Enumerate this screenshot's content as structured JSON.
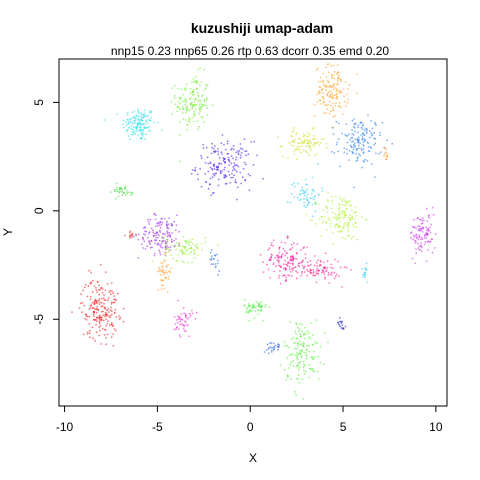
{
  "chart_data": {
    "type": "scatter",
    "title": "kuzushiji umap-adam",
    "subtitle": "nnp15 0.23 nnp65 0.26 rtp 0.63 dcorr 0.35 emd 0.20",
    "xlabel": "X",
    "ylabel": "Y",
    "xlim": [
      -10.3,
      10.6
    ],
    "ylim": [
      -9.0,
      7.0
    ],
    "x_ticks": [
      -10,
      -5,
      0,
      5,
      10
    ],
    "x_tick_labels": [
      "-10",
      "-5",
      "0",
      "5",
      "10"
    ],
    "y_ticks": [
      -5,
      0,
      5
    ],
    "y_tick_labels": [
      "-5",
      "0",
      "5"
    ],
    "grid": false,
    "legend": "none",
    "clusters": [
      {
        "color": "#22dfee",
        "x": -6.0,
        "y": 4.0,
        "sx": 0.45,
        "sy": 0.4,
        "n": 140
      },
      {
        "color": "#66ee22",
        "x": -3.1,
        "y": 5.0,
        "sx": 0.45,
        "sy": 0.65,
        "n": 150
      },
      {
        "color": "#4411ee",
        "x": -1.4,
        "y": 2.1,
        "sx": 0.75,
        "sy": 0.55,
        "n": 170
      },
      {
        "color": "#ff9911",
        "x": 4.4,
        "y": 5.5,
        "sx": 0.45,
        "sy": 0.6,
        "n": 140
      },
      {
        "color": "#2277ee",
        "x": 5.9,
        "y": 3.2,
        "sx": 0.6,
        "sy": 0.55,
        "n": 150
      },
      {
        "color": "#c8dd11",
        "x": 2.9,
        "y": 3.1,
        "sx": 0.55,
        "sy": 0.3,
        "n": 90
      },
      {
        "color": "#22ccee",
        "x": 3.0,
        "y": 0.8,
        "sx": 0.4,
        "sy": 0.4,
        "n": 60
      },
      {
        "color": "#aaee22",
        "x": 4.9,
        "y": -0.3,
        "sx": 0.6,
        "sy": 0.55,
        "n": 140
      },
      {
        "color": "#9922ee",
        "x": -4.8,
        "y": -1.1,
        "sx": 0.6,
        "sy": 0.45,
        "n": 150
      },
      {
        "color": "#88ee22",
        "x": -3.5,
        "y": -1.7,
        "sx": 0.55,
        "sy": 0.3,
        "n": 80
      },
      {
        "color": "#ff9922",
        "x": -4.6,
        "y": -2.8,
        "sx": 0.2,
        "sy": 0.35,
        "n": 45
      },
      {
        "color": "#ff1199",
        "x": 1.9,
        "y": -2.3,
        "sx": 0.6,
        "sy": 0.45,
        "n": 140
      },
      {
        "color": "#ff1188",
        "x": 3.7,
        "y": -2.7,
        "sx": 0.6,
        "sy": 0.28,
        "n": 90
      },
      {
        "color": "#cc22ee",
        "x": 9.3,
        "y": -1.1,
        "sx": 0.35,
        "sy": 0.5,
        "n": 100
      },
      {
        "color": "#ee1111",
        "x": -8.1,
        "y": -4.5,
        "sx": 0.5,
        "sy": 0.7,
        "n": 200
      },
      {
        "color": "#44ee33",
        "x": 0.3,
        "y": -4.5,
        "sx": 0.3,
        "sy": 0.22,
        "n": 55
      },
      {
        "color": "#ee22cc",
        "x": -3.6,
        "y": -5.1,
        "sx": 0.25,
        "sy": 0.35,
        "n": 50
      },
      {
        "color": "#44ee22",
        "x": 2.8,
        "y": -6.5,
        "sx": 0.5,
        "sy": 0.75,
        "n": 140
      },
      {
        "color": "#33dd33",
        "x": -7.0,
        "y": 0.9,
        "sx": 0.45,
        "sy": 0.15,
        "n": 35
      },
      {
        "color": "#2255ee",
        "x": 1.3,
        "y": -6.3,
        "sx": 0.2,
        "sy": 0.12,
        "n": 25
      },
      {
        "color": "#1111cc",
        "x": 4.9,
        "y": -5.2,
        "sx": 0.12,
        "sy": 0.12,
        "n": 15
      },
      {
        "color": "#2266ee",
        "x": -1.9,
        "y": -2.3,
        "sx": 0.15,
        "sy": 0.25,
        "n": 20
      },
      {
        "color": "#ee2211",
        "x": -6.4,
        "y": -1.1,
        "sx": 0.15,
        "sy": 0.1,
        "n": 12
      },
      {
        "color": "#22ccee",
        "x": 6.2,
        "y": -2.8,
        "sx": 0.1,
        "sy": 0.25,
        "n": 15
      },
      {
        "color": "#ff8811",
        "x": 7.3,
        "y": 2.6,
        "sx": 0.06,
        "sy": 0.18,
        "n": 10
      }
    ]
  }
}
